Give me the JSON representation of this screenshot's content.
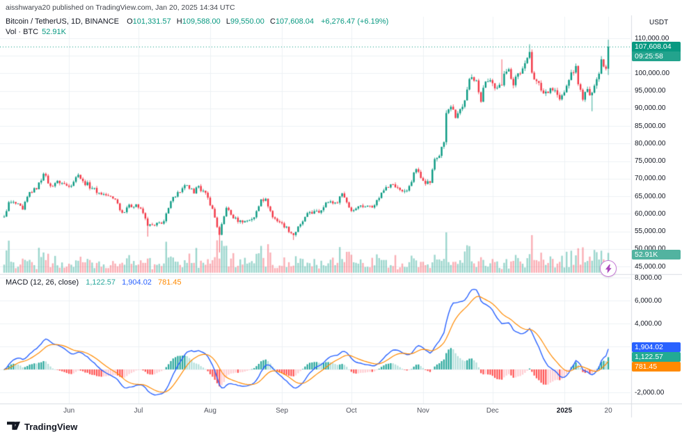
{
  "header": {
    "attribution": "aisshwarya20 published on TradingView.com, Jan 20, 2025 14:34 UTC",
    "quote_currency": "USDT"
  },
  "legend": {
    "symbol": "Bitcoin / TetherUS, 1D, BINANCE",
    "ohlc": [
      {
        "label": "O",
        "value": "101,331.57"
      },
      {
        "label": "H",
        "value": "109,588.00"
      },
      {
        "label": "L",
        "value": "99,550.00"
      },
      {
        "label": "C",
        "value": "107,608.04"
      }
    ],
    "change": "+6,276.47 (+6.19%)",
    "volume_label": "Vol · BTC",
    "volume_value": "52.91K"
  },
  "macd_legend": {
    "title": "MACD (12, 26, close)",
    "histogram": "1,122.57",
    "macd": "1,904.02",
    "signal": "781.45"
  },
  "badges": {
    "price": "107,608.04",
    "countdown": "09:25:58",
    "volume": "52.91K",
    "macd": "1,904.02",
    "histogram": "1,122.57",
    "signal": "781.45"
  },
  "footer": {
    "brand": "TradingView"
  },
  "colors": {
    "up": "#089981",
    "down": "#F23645",
    "vol_up": "rgba(8,153,129,0.40)",
    "vol_down": "rgba(242,54,69,0.40)",
    "macd_line": "#2962FF",
    "signal_line": "#FF8A00",
    "hist_grow_up": "#26A69A",
    "hist_fall_up": "#B2DFDB",
    "hist_fall_dn": "#FF5252",
    "hist_grow_dn": "#FFCDD2",
    "grid": "#EDF0F4",
    "axis_border": "#D8DCE2",
    "price_line": "#089981",
    "badge_price": "#089981",
    "badge_countdown": "#23A38D",
    "badge_vol": "#52B3A0",
    "badge_macd": "#2962FF",
    "badge_hist": "#22AB94",
    "badge_signal": "#FF8A00"
  },
  "axis": {
    "price_labels": [
      {
        "text": "110,000.00",
        "value": 110000
      },
      {
        "text": "105,000.00",
        "value": 105000
      },
      {
        "text": "100,000.00",
        "value": 100000
      },
      {
        "text": "95,000.00",
        "value": 95000
      },
      {
        "text": "90,000.00",
        "value": 90000
      },
      {
        "text": "85,000.00",
        "value": 85000
      },
      {
        "text": "80,000.00",
        "value": 80000
      },
      {
        "text": "75,000.00",
        "value": 75000
      },
      {
        "text": "70,000.00",
        "value": 70000
      },
      {
        "text": "65,000.00",
        "value": 65000
      },
      {
        "text": "60,000.00",
        "value": 60000
      },
      {
        "text": "55,000.00",
        "value": 55000
      },
      {
        "text": "50,000.00",
        "value": 50000
      },
      {
        "text": "45,000.00",
        "value": 45000
      }
    ],
    "macd_labels": [
      {
        "text": "8,000.00",
        "value": 8000
      },
      {
        "text": "6,000.00",
        "value": 6000
      },
      {
        "text": "4,000.00",
        "value": 4000
      },
      {
        "text": "2,000.00",
        "value": 2000
      },
      {
        "text": "0.00",
        "value": 0
      },
      {
        "text": "-2,000.00",
        "value": -2000
      }
    ],
    "time_labels": [
      {
        "label": "Jun",
        "date": "2024-06-01"
      },
      {
        "label": "Jul",
        "date": "2024-07-01"
      },
      {
        "label": "Aug",
        "date": "2024-08-01"
      },
      {
        "label": "Sep",
        "date": "2024-09-01"
      },
      {
        "label": "Oct",
        "date": "2024-10-01"
      },
      {
        "label": "Nov",
        "date": "2024-11-01"
      },
      {
        "label": "Dec",
        "date": "2024-12-01"
      },
      {
        "label": "2025",
        "date": "2025-01-01"
      },
      {
        "label": "20",
        "date": "2025-01-20"
      }
    ]
  },
  "chart_data": {
    "type": "candlestick",
    "title": "Bitcoin / TetherUS, 1D, BINANCE",
    "panes": [
      "price+volume",
      "MACD (12, 26, close)"
    ],
    "start_date": "2024-05-04",
    "end_date": "2025-01-20",
    "price_axis": {
      "label_min": 45000,
      "label_max": 110000,
      "step": 5000
    },
    "macd_axis": {
      "label_min": -2000,
      "label_max": 8000,
      "step": 2000
    },
    "last": {
      "open": 101331.57,
      "high": 109588.0,
      "low": 99550.0,
      "close": 107608.04,
      "change": 6276.47,
      "change_pct": 6.19,
      "volume": "52.91K"
    },
    "macd_last": {
      "macd": 1904.02,
      "signal": 781.45,
      "histogram": 1122.57
    },
    "anchors": [
      [
        "2024-05-04",
        59200
      ],
      [
        "2024-05-06",
        63300
      ],
      [
        "2024-05-09",
        62900
      ],
      [
        "2024-05-12",
        61200
      ],
      [
        "2024-05-15",
        66200
      ],
      [
        "2024-05-18",
        67000
      ],
      [
        "2024-05-21",
        71400
      ],
      [
        "2024-05-24",
        67900
      ],
      [
        "2024-05-27",
        69400
      ],
      [
        "2024-06-01",
        67700
      ],
      [
        "2024-06-05",
        71100
      ],
      [
        "2024-06-07",
        69300
      ],
      [
        "2024-06-11",
        67300
      ],
      [
        "2024-06-14",
        66000
      ],
      [
        "2024-06-18",
        65100
      ],
      [
        "2024-06-21",
        64100
      ],
      [
        "2024-06-24",
        60300
      ],
      [
        "2024-06-26",
        61800
      ],
      [
        "2024-06-30",
        62700
      ],
      [
        "2024-07-03",
        60200
      ],
      [
        "2024-07-05",
        56600,
        53500,
        null
      ],
      [
        "2024-07-08",
        56700
      ],
      [
        "2024-07-12",
        57900
      ],
      [
        "2024-07-16",
        64800
      ],
      [
        "2024-07-22",
        68150
      ],
      [
        "2024-07-25",
        65800
      ],
      [
        "2024-07-27",
        67900
      ],
      [
        "2024-07-31",
        64600
      ],
      [
        "2024-08-02",
        61400
      ],
      [
        "2024-08-05",
        54000,
        49000,
        null
      ],
      [
        "2024-08-08",
        61700
      ],
      [
        "2024-08-11",
        58700
      ],
      [
        "2024-08-15",
        57550
      ],
      [
        "2024-08-20",
        59000
      ],
      [
        "2024-08-23",
        64100
      ],
      [
        "2024-08-25",
        64300
      ],
      [
        "2024-08-28",
        59000
      ],
      [
        "2024-09-01",
        57300
      ],
      [
        "2024-09-06",
        53950,
        52550,
        null
      ],
      [
        "2024-09-09",
        57000
      ],
      [
        "2024-09-13",
        60500
      ],
      [
        "2024-09-17",
        60300
      ],
      [
        "2024-09-20",
        63200
      ],
      [
        "2024-09-25",
        63150
      ],
      [
        "2024-09-27",
        65800
      ],
      [
        "2024-10-01",
        60800
      ],
      [
        "2024-10-04",
        62100
      ],
      [
        "2024-10-08",
        62300
      ],
      [
        "2024-10-11",
        62450
      ],
      [
        "2024-10-14",
        66000
      ],
      [
        "2024-10-16",
        67600
      ],
      [
        "2024-10-18",
        68400
      ],
      [
        "2024-10-21",
        67400
      ],
      [
        "2024-10-23",
        66400
      ],
      [
        "2024-10-25",
        66600
      ],
      [
        "2024-10-29",
        72700
      ],
      [
        "2024-10-31",
        70200
      ],
      [
        "2024-11-01",
        69400
      ],
      [
        "2024-11-04",
        68800
      ],
      [
        "2024-11-06",
        75600
      ],
      [
        "2024-11-08",
        76500
      ],
      [
        "2024-11-10",
        80400
      ],
      [
        "2024-11-11",
        88700
      ],
      [
        "2024-11-13",
        90500
      ],
      [
        "2024-11-15",
        87300
      ],
      [
        "2024-11-17",
        89800
      ],
      [
        "2024-11-19",
        92300
      ],
      [
        "2024-11-21",
        98400
      ],
      [
        "2024-11-22",
        98900
      ],
      [
        "2024-11-24",
        98000
      ],
      [
        "2024-11-26",
        91900
      ],
      [
        "2024-11-27",
        95900
      ],
      [
        "2024-11-29",
        97700
      ],
      [
        "2024-12-01",
        97200
      ],
      [
        "2024-12-03",
        95900
      ],
      [
        "2024-12-05",
        96600,
        null,
        104000
      ],
      [
        "2024-12-06",
        99900
      ],
      [
        "2024-12-08",
        101200
      ],
      [
        "2024-12-10",
        96600
      ],
      [
        "2024-12-12",
        100000
      ],
      [
        "2024-12-14",
        101400
      ],
      [
        "2024-12-16",
        104400
      ],
      [
        "2024-12-17",
        106100,
        null,
        108300
      ],
      [
        "2024-12-18",
        100200
      ],
      [
        "2024-12-20",
        97800
      ],
      [
        "2024-12-23",
        94300
      ],
      [
        "2024-12-26",
        95800
      ],
      [
        "2024-12-28",
        95200
      ],
      [
        "2024-12-30",
        92600
      ],
      [
        "2025-01-01",
        94600
      ],
      [
        "2025-01-03",
        98100
      ],
      [
        "2025-01-06",
        102100
      ],
      [
        "2025-01-07",
        96900
      ],
      [
        "2025-01-09",
        92500
      ],
      [
        "2025-01-10",
        94700
      ],
      [
        "2025-01-13",
        94500,
        89200,
        null
      ],
      [
        "2025-01-14",
        96500
      ],
      [
        "2025-01-16",
        99900
      ],
      [
        "2025-01-17",
        104000
      ],
      [
        "2025-01-19",
        101331
      ],
      [
        "2025-01-20",
        107608,
        99550,
        109588
      ]
    ]
  }
}
